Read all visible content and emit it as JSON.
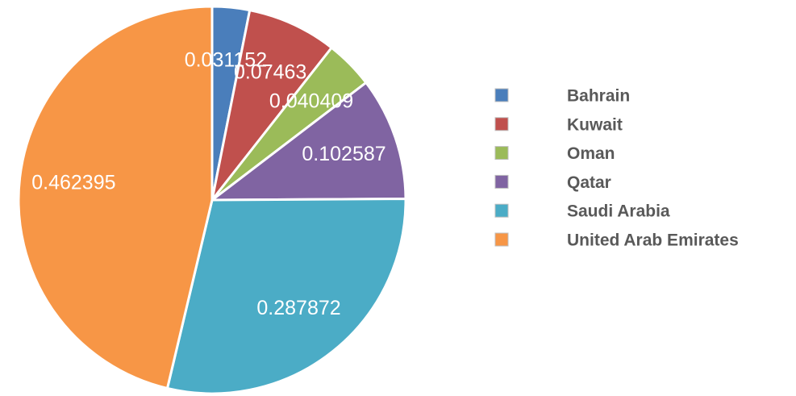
{
  "chart_data": {
    "type": "pie",
    "categories": [
      "Bahrain",
      "Kuwait",
      "Oman",
      "Qatar",
      "Saudi Arabia",
      "United Arab Emirates"
    ],
    "values": [
      0.031152,
      0.07463,
      0.040409,
      0.102587,
      0.287872,
      0.462395
    ],
    "colors": [
      "#4a7ebb",
      "#c0504d",
      "#9bbb59",
      "#8064a2",
      "#4bacc6",
      "#f79646"
    ],
    "legend": "right"
  }
}
